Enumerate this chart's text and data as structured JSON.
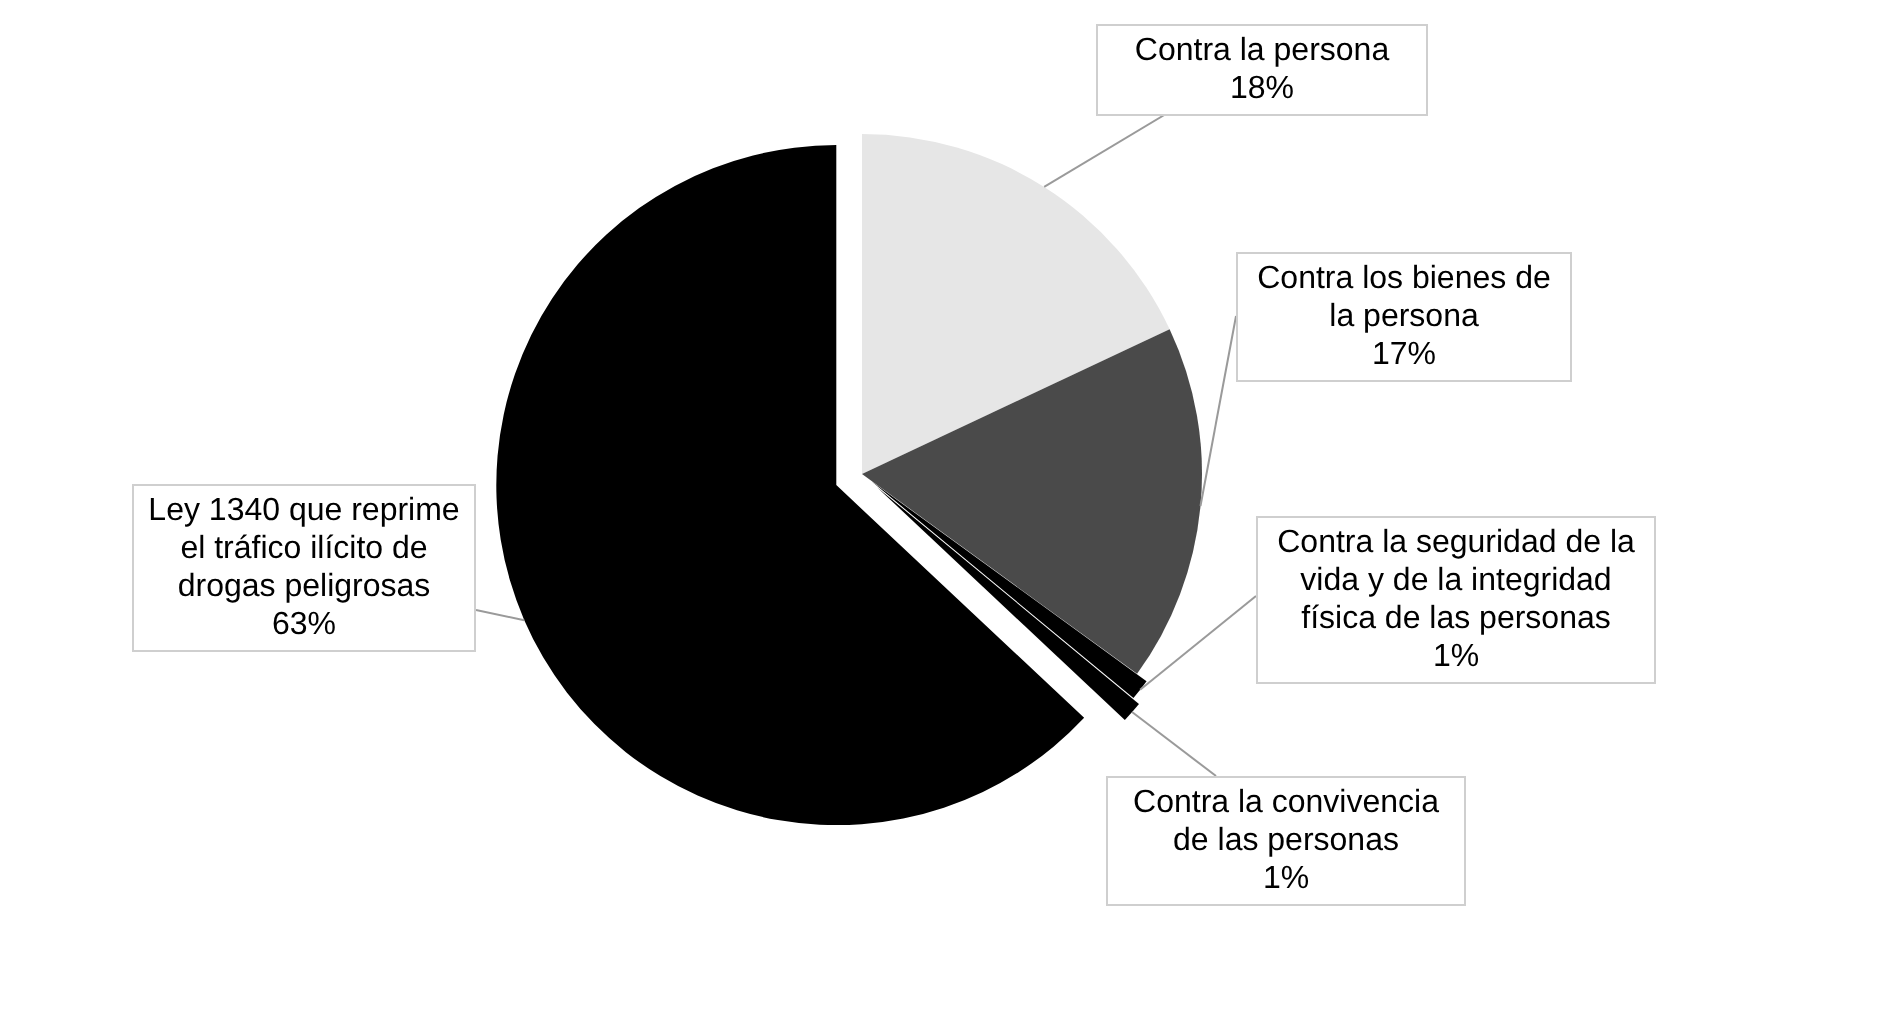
{
  "chart_data": {
    "type": "pie",
    "categories": [
      "Contra la persona",
      "Contra los bienes de la persona",
      "Contra la seguridad de la vida y de la integridad física de las personas",
      "Contra la convivencia de las personas",
      "Ley 1340 que reprime el tráfico ilícito de drogas peligrosas"
    ],
    "values": [
      18,
      17,
      1,
      1,
      63
    ],
    "value_labels": [
      "18%",
      "17%",
      "1%",
      "1%",
      "63%"
    ],
    "colors": [
      "#e6e6e6",
      "#4a4a4a",
      "#000000",
      "#000000",
      "#000000"
    ]
  }
}
